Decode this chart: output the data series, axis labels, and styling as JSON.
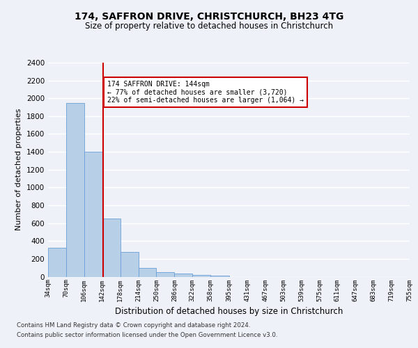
{
  "title1": "174, SAFFRON DRIVE, CHRISTCHURCH, BH23 4TG",
  "title2": "Size of property relative to detached houses in Christchurch",
  "xlabel": "Distribution of detached houses by size in Christchurch",
  "ylabel": "Number of detached properties",
  "bin_edges": [
    34,
    70,
    106,
    142,
    178,
    214,
    250,
    286,
    322,
    358,
    395,
    431,
    467,
    503,
    539,
    575,
    611,
    647,
    683,
    719,
    755
  ],
  "counts": [
    325,
    1950,
    1400,
    650,
    275,
    100,
    48,
    38,
    22,
    15,
    0,
    0,
    0,
    0,
    0,
    0,
    0,
    0,
    0,
    0
  ],
  "bar_color": "#b8cfe8",
  "bar_edge_color": "#6a9fd8",
  "property_size": 144,
  "vline_color": "#cc0000",
  "annotation_text": "174 SAFFRON DRIVE: 144sqm\n← 77% of detached houses are smaller (3,720)\n22% of semi-detached houses are larger (1,064) →",
  "annotation_box_facecolor": "white",
  "annotation_box_edgecolor": "#cc0000",
  "ylim": [
    0,
    2400
  ],
  "yticks": [
    0,
    200,
    400,
    600,
    800,
    1000,
    1200,
    1400,
    1600,
    1800,
    2000,
    2200,
    2400
  ],
  "tick_labels": [
    "34sqm",
    "70sqm",
    "106sqm",
    "142sqm",
    "178sqm",
    "214sqm",
    "250sqm",
    "286sqm",
    "322sqm",
    "358sqm",
    "395sqm",
    "431sqm",
    "467sqm",
    "503sqm",
    "539sqm",
    "575sqm",
    "611sqm",
    "647sqm",
    "683sqm",
    "719sqm",
    "755sqm"
  ],
  "footer1": "Contains HM Land Registry data © Crown copyright and database right 2024.",
  "footer2": "Contains public sector information licensed under the Open Government Licence v3.0.",
  "bg_color": "#eef2f8",
  "grid_color": "#ffffff"
}
